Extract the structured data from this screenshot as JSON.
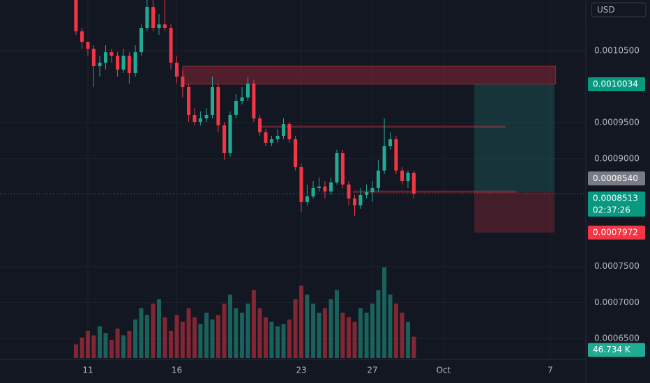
{
  "chart_data": {
    "type": "candlestick",
    "currency": "USD",
    "x": [
      10.33,
      10.67,
      11,
      11.33,
      11.67,
      12,
      12.33,
      12.67,
      13,
      13.33,
      13.67,
      14,
      14.33,
      14.67,
      15,
      15.33,
      15.67,
      16,
      16.33,
      16.67,
      17,
      17.33,
      17.67,
      18,
      18.33,
      18.67,
      19,
      19.33,
      19.67,
      20,
      20.33,
      20.67,
      21,
      21.33,
      21.67,
      22,
      22.33,
      22.67,
      23,
      23.33,
      23.67,
      24,
      24.33,
      24.67,
      25,
      25.33,
      25.67,
      26,
      26.33,
      26.67,
      27,
      27.33,
      27.67,
      28,
      28.33,
      28.67,
      29,
      29.33
    ],
    "open": [
      0.0011205,
      0.0010769,
      0.0010624,
      0.0010527,
      0.0010285,
      0.0010334,
      0.0010479,
      0.0010431,
      0.0010237,
      0.0010431,
      0.0010189,
      0.0010479,
      0.0010818,
      0.0011108,
      0.0010818,
      0.0010866,
      0.0010818,
      0.0010334,
      0.001014,
      0.0009995,
      0.0009608,
      0.0009511,
      0.0009559,
      0.0009608,
      0.0009995,
      0.0009463,
      0.0009076,
      0.0009608,
      0.0009801,
      0.000985,
      0.0010043,
      0.0009559,
      0.0009366,
      0.0009221,
      0.0009269,
      0.0009317,
      0.0009482,
      0.0009269,
      0.0008882,
      0.0008398,
      0.0008475,
      0.0008592,
      0.0008611,
      0.0008543,
      0.0008669,
      0.0009076,
      0.000864,
      0.0008446,
      0.0008349,
      0.0008495,
      0.0008533,
      0.0008592,
      0.0008834,
      0.0009172,
      0.0009269,
      0.0008834,
      0.0008688,
      0.0008804
    ],
    "high": [
      0.0011205,
      0.0010818,
      0.0010624,
      0.0010576,
      0.0010431,
      0.0010576,
      0.0010527,
      0.0010479,
      0.0010527,
      0.0010479,
      0.0010576,
      0.0010866,
      0.0011205,
      0.0011205,
      0.0011011,
      0.0011205,
      0.0010866,
      0.0010431,
      0.0010237,
      0.0010043,
      0.0009705,
      0.0009656,
      0.0009705,
      0.001014,
      0.0010043,
      0.0009511,
      0.0009656,
      0.0009898,
      0.0009995,
      0.001014,
      0.0010092,
      0.0009608,
      0.0009414,
      0.0009317,
      0.0009414,
      0.0009559,
      0.0009511,
      0.0009317,
      0.000893,
      0.000864,
      0.0008688,
      0.0008737,
      0.0008688,
      0.0008737,
      0.0009124,
      0.0009124,
      0.0008688,
      0.0008495,
      0.0008592,
      0.000864,
      0.0008688,
      0.0008979,
      0.0009559,
      0.0009366,
      0.0009317,
      0.0008882,
      0.0008834,
      0.0008834
    ],
    "low": [
      0.001072,
      0.0010527,
      0.0010431,
      0.0009995,
      0.001014,
      0.0010237,
      0.0010334,
      0.001014,
      0.0010189,
      0.0010043,
      0.001014,
      0.0010431,
      0.0010769,
      0.0010769,
      0.001072,
      0.0010769,
      0.0010237,
      0.0010043,
      0.000985,
      0.0009511,
      0.0009463,
      0.0009463,
      0.0009511,
      0.0009559,
      0.0009366,
      0.0008979,
      0.000903,
      0.0009559,
      0.0009753,
      0.0009801,
      0.0009511,
      0.0009317,
      0.0009172,
      0.0009172,
      0.0009221,
      0.0009269,
      0.0009221,
      0.0008834,
      0.0008253,
      0.0008349,
      0.0008446,
      0.0008543,
      0.0008446,
      0.0008495,
      0.000864,
      0.0008592,
      0.0008349,
      0.0008204,
      0.0008301,
      0.0008446,
      0.0008398,
      0.0008543,
      0.0008785,
      0.0009124,
      0.0008785,
      0.000864,
      0.0008592,
      0.0008446
    ],
    "close": [
      0.0010769,
      0.0010624,
      0.0010527,
      0.0010285,
      0.0010334,
      0.0010479,
      0.0010431,
      0.0010237,
      0.0010431,
      0.0010189,
      0.0010479,
      0.0010818,
      0.0011108,
      0.0010818,
      0.0010866,
      0.0010818,
      0.0010334,
      0.001014,
      0.0009995,
      0.0009608,
      0.0009511,
      0.0009559,
      0.0009608,
      0.0009995,
      0.0009463,
      0.0009076,
      0.0009608,
      0.0009801,
      0.000985,
      0.0010043,
      0.0009559,
      0.0009366,
      0.0009221,
      0.0009269,
      0.0009317,
      0.0009482,
      0.0009269,
      0.0008882,
      0.0008398,
      0.0008475,
      0.0008592,
      0.0008611,
      0.0008543,
      0.0008669,
      0.0009076,
      0.000864,
      0.0008446,
      0.0008349,
      0.0008495,
      0.0008533,
      0.0008592,
      0.0008834,
      0.0009172,
      0.0009269,
      0.0008834,
      0.0008688,
      0.0008804,
      0.0008513
    ],
    "volume": [
      30,
      45,
      60,
      50,
      70,
      55,
      40,
      65,
      50,
      60,
      85,
      110,
      95,
      120,
      130,
      90,
      60,
      95,
      80,
      110,
      90,
      75,
      100,
      85,
      95,
      120,
      140,
      110,
      100,
      120,
      150,
      110,
      90,
      80,
      70,
      75,
      85,
      130,
      160,
      140,
      120,
      100,
      110,
      130,
      150,
      100,
      90,
      80,
      110,
      100,
      120,
      150,
      200,
      140,
      120,
      100,
      80,
      46.734
    ],
    "volume_lim": [
      0,
      200
    ],
    "volume_badge": {
      "value": 46.734,
      "label": "46.734 K"
    },
    "up_color": "#22ab94",
    "down_color": "#f23645",
    "ylim": [
      0.000621,
      0.0011205
    ],
    "yticks": [
      {
        "value": 0.00105,
        "label": "0.0010500"
      },
      {
        "value": 0.00095,
        "label": "0.0009500"
      },
      {
        "value": 0.0009,
        "label": "0.0009000"
      },
      {
        "value": 0.00075,
        "label": "0.0007500"
      },
      {
        "value": 0.0007,
        "label": "0.0007000"
      },
      {
        "value": 0.00065,
        "label": "0.0006500"
      }
    ],
    "xlim": [
      6.06,
      39
    ],
    "xticks": [
      11,
      16,
      23,
      27,
      {
        "value": 31,
        "label": "Oct"
      },
      {
        "value": 37,
        "label": "7"
      }
    ],
    "grid": true,
    "resistance_zone": {
      "x": [
        16.33,
        37.3
      ],
      "prices": [
        0.0010034,
        0.0010286
      ]
    },
    "lines": [
      {
        "x": [
          20.57,
          34.5
        ],
        "price": 0.0009443
      },
      {
        "x": [
          25.9,
          35.1
        ],
        "price": 0.000854
      }
    ],
    "position": {
      "x": [
        32.73,
        37.24
      ],
      "target": 0.0010034,
      "target_label": "0.0010034",
      "entry": 0.000854,
      "entry_label": "0.0008540",
      "stop": 0.0007972,
      "stop_label": "0.0007972"
    },
    "last_price": 0.0008513,
    "countdown": "02:37:26"
  }
}
